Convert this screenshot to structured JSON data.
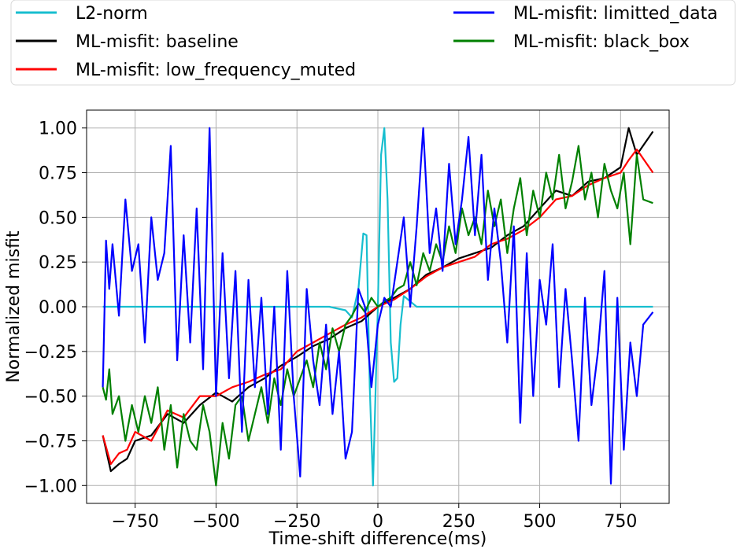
{
  "chart_data": {
    "type": "line",
    "xlabel": "Time-shift difference(ms)",
    "ylabel": "Normalized misfit",
    "xlim": [
      -900,
      900
    ],
    "ylim": [
      -1.1,
      1.1
    ],
    "xticks": [
      -750,
      -500,
      -250,
      0,
      250,
      500,
      750
    ],
    "xtick_labels": [
      "−750",
      "−500",
      "−250",
      "0",
      "250",
      "500",
      "750"
    ],
    "yticks": [
      1.0,
      0.75,
      0.5,
      0.25,
      0.0,
      -0.25,
      -0.5,
      -0.75,
      -1.0
    ],
    "ytick_labels": [
      "1.00",
      "0.75",
      "0.50",
      "0.25",
      "0.00",
      "−0.25",
      "−0.50",
      "−0.75",
      "−1.00"
    ],
    "grid": true,
    "legend_position": "top",
    "series": [
      {
        "name": "L2-norm",
        "color": "#17becf",
        "x": [
          -850,
          -600,
          -300,
          -150,
          -100,
          -80,
          -60,
          -45,
          -35,
          -25,
          -15,
          0,
          10,
          20,
          30,
          40,
          50,
          60,
          70,
          80,
          100,
          120,
          150,
          200,
          400,
          600,
          850
        ],
        "y": [
          0.0,
          0.0,
          0.0,
          0.0,
          -0.02,
          -0.06,
          0.1,
          0.41,
          0.4,
          -0.45,
          -1.0,
          0.0,
          0.85,
          1.0,
          0.6,
          -0.2,
          -0.42,
          -0.4,
          -0.1,
          0.06,
          0.03,
          0.0,
          0.0,
          0.0,
          0.0,
          0.0,
          0.0
        ]
      },
      {
        "name": "ML-misfit: baseline",
        "color": "#000000",
        "x": [
          -850,
          -825,
          -800,
          -775,
          -750,
          -700,
          -650,
          -600,
          -550,
          -500,
          -450,
          -400,
          -350,
          -300,
          -250,
          -200,
          -150,
          -100,
          -50,
          0,
          50,
          100,
          150,
          200,
          250,
          300,
          350,
          400,
          450,
          500,
          550,
          600,
          650,
          700,
          750,
          775,
          800,
          850
        ],
        "y": [
          -0.72,
          -0.92,
          -0.88,
          -0.85,
          -0.75,
          -0.72,
          -0.6,
          -0.65,
          -0.55,
          -0.48,
          -0.53,
          -0.45,
          -0.4,
          -0.33,
          -0.28,
          -0.22,
          -0.18,
          -0.12,
          -0.08,
          0.0,
          0.05,
          0.1,
          0.18,
          0.22,
          0.27,
          0.3,
          0.33,
          0.4,
          0.45,
          0.55,
          0.65,
          0.62,
          0.7,
          0.72,
          0.78,
          1.0,
          0.85,
          0.98
        ]
      },
      {
        "name": "ML-misfit: low_frequency_muted",
        "color": "#ff0000",
        "x": [
          -850,
          -825,
          -800,
          -775,
          -750,
          -700,
          -650,
          -600,
          -550,
          -500,
          -450,
          -400,
          -350,
          -300,
          -250,
          -200,
          -150,
          -100,
          -50,
          0,
          50,
          100,
          150,
          200,
          250,
          300,
          350,
          400,
          450,
          500,
          550,
          600,
          650,
          700,
          750,
          775,
          800,
          850
        ],
        "y": [
          -0.72,
          -0.88,
          -0.82,
          -0.8,
          -0.7,
          -0.75,
          -0.58,
          -0.62,
          -0.5,
          -0.5,
          -0.45,
          -0.42,
          -0.38,
          -0.35,
          -0.25,
          -0.2,
          -0.15,
          -0.1,
          -0.06,
          0.0,
          0.04,
          0.1,
          0.17,
          0.22,
          0.25,
          0.28,
          0.35,
          0.38,
          0.43,
          0.5,
          0.6,
          0.62,
          0.68,
          0.72,
          0.75,
          0.82,
          0.88,
          0.75
        ]
      },
      {
        "name": "ML-misfit: limitted_data",
        "color": "#0000ff",
        "x": [
          -850,
          -840,
          -830,
          -820,
          -800,
          -780,
          -760,
          -740,
          -720,
          -700,
          -680,
          -660,
          -640,
          -620,
          -600,
          -580,
          -560,
          -540,
          -520,
          -500,
          -480,
          -460,
          -440,
          -420,
          -400,
          -380,
          -360,
          -340,
          -320,
          -300,
          -280,
          -260,
          -240,
          -220,
          -200,
          -180,
          -160,
          -140,
          -120,
          -100,
          -80,
          -60,
          -40,
          -20,
          0,
          20,
          40,
          60,
          80,
          100,
          120,
          140,
          160,
          180,
          200,
          220,
          240,
          260,
          280,
          300,
          320,
          340,
          360,
          380,
          400,
          420,
          440,
          460,
          480,
          500,
          520,
          540,
          560,
          580,
          600,
          620,
          640,
          660,
          680,
          700,
          720,
          740,
          760,
          780,
          800,
          820,
          850
        ],
        "y": [
          -0.45,
          0.37,
          0.1,
          0.35,
          -0.05,
          0.6,
          0.2,
          0.35,
          -0.2,
          0.5,
          0.15,
          0.3,
          0.9,
          -0.3,
          0.4,
          -0.2,
          0.55,
          -0.35,
          1.0,
          -0.5,
          0.3,
          -0.4,
          0.2,
          -0.7,
          0.15,
          -0.45,
          0.05,
          -0.6,
          0.0,
          -0.8,
          0.2,
          -0.5,
          -0.95,
          0.1,
          -0.3,
          -0.55,
          -0.1,
          -0.6,
          -0.25,
          -0.85,
          -0.7,
          0.1,
          0.0,
          -0.45,
          -0.1,
          0.05,
          0.0,
          0.25,
          0.5,
          0.0,
          0.45,
          1.0,
          0.3,
          0.55,
          0.2,
          0.8,
          0.35,
          0.6,
          0.95,
          0.4,
          0.85,
          0.15,
          0.55,
          0.25,
          -0.2,
          0.45,
          -0.65,
          0.3,
          -0.5,
          0.15,
          -0.1,
          0.35,
          -0.45,
          0.1,
          -0.3,
          -0.75,
          0.05,
          -0.55,
          -0.25,
          0.2,
          -0.99,
          0.05,
          -0.8,
          -0.2,
          -0.5,
          -0.1,
          -0.03
        ]
      },
      {
        "name": "ML-misfit: black_box",
        "color": "#008000",
        "x": [
          -850,
          -840,
          -830,
          -820,
          -800,
          -780,
          -760,
          -740,
          -720,
          -700,
          -680,
          -660,
          -640,
          -620,
          -600,
          -580,
          -560,
          -540,
          -520,
          -500,
          -480,
          -460,
          -440,
          -420,
          -400,
          -380,
          -360,
          -340,
          -320,
          -300,
          -280,
          -260,
          -240,
          -220,
          -200,
          -180,
          -160,
          -140,
          -120,
          -100,
          -80,
          -60,
          -40,
          -20,
          0,
          20,
          40,
          60,
          80,
          100,
          120,
          140,
          160,
          180,
          200,
          220,
          240,
          260,
          280,
          300,
          320,
          340,
          360,
          380,
          400,
          420,
          440,
          460,
          480,
          500,
          520,
          540,
          560,
          580,
          600,
          620,
          640,
          660,
          680,
          700,
          720,
          740,
          760,
          780,
          800,
          820,
          850
        ],
        "y": [
          -0.45,
          -0.52,
          -0.35,
          -0.6,
          -0.5,
          -0.75,
          -0.55,
          -0.7,
          -0.5,
          -0.65,
          -0.45,
          -0.8,
          -0.55,
          -0.9,
          -0.6,
          -0.75,
          -0.8,
          -0.55,
          -0.7,
          -1.0,
          -0.65,
          -0.85,
          -0.55,
          -0.5,
          -0.75,
          -0.6,
          -0.45,
          -0.65,
          -0.4,
          -0.55,
          -0.35,
          -0.5,
          -0.4,
          -0.3,
          -0.45,
          -0.2,
          -0.35,
          -0.12,
          -0.25,
          -0.1,
          -0.05,
          0.02,
          -0.03,
          0.05,
          0.0,
          0.03,
          0.05,
          0.1,
          0.12,
          0.25,
          0.12,
          0.3,
          0.2,
          0.35,
          0.25,
          0.45,
          0.3,
          0.55,
          0.4,
          0.5,
          0.35,
          0.65,
          0.45,
          0.6,
          0.3,
          0.55,
          0.72,
          0.4,
          0.65,
          0.5,
          0.75,
          0.6,
          0.85,
          0.55,
          0.7,
          0.9,
          0.6,
          0.75,
          0.5,
          0.8,
          0.65,
          0.55,
          0.75,
          0.35,
          0.85,
          0.6,
          0.58
        ]
      }
    ]
  }
}
